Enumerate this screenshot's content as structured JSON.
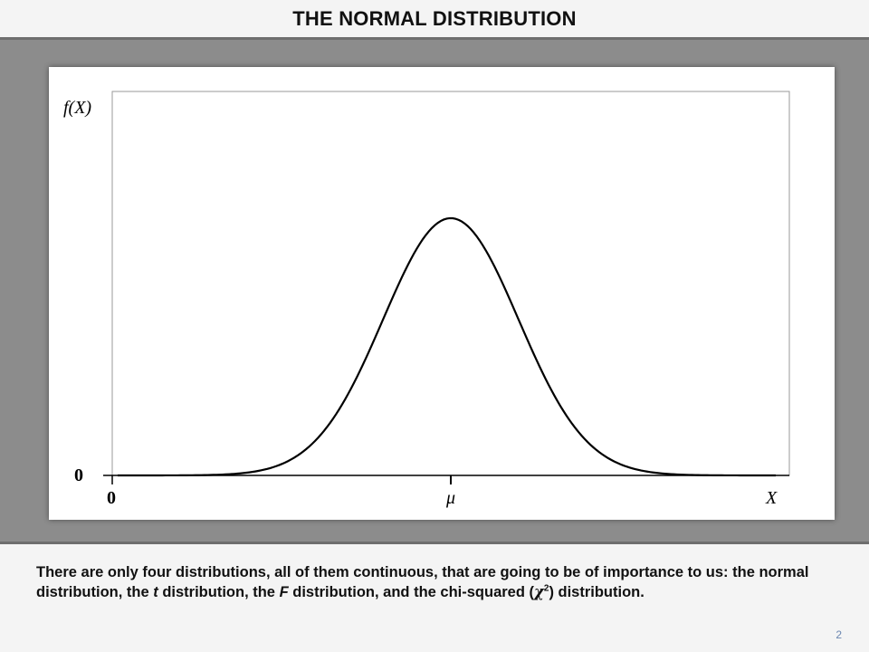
{
  "header": {
    "title": "THE NORMAL DISTRIBUTION"
  },
  "chart_data": {
    "type": "line",
    "curve": "normal-density",
    "mean_label": "μ",
    "xlabel": "X",
    "ylabel": "f(X)",
    "x_origin_label": "0",
    "y_origin_label": "0",
    "xlim": [
      0,
      1
    ],
    "ylim": [
      0,
      1
    ],
    "mean": 0.5,
    "sd": 0.1,
    "peak_fraction_of_ylim": 0.67,
    "grid": false,
    "legend": "none"
  },
  "body": {
    "text_1": "There are only four distributions, all of them continuous, that are going to be of importance to us: the normal distribution, the ",
    "t_label": "t",
    "text_2": " distribution, the ",
    "F_label": "F",
    "text_3": " distribution, and the chi-squared (",
    "chi_symbol": "χ",
    "chi_power": "2",
    "text_4": ") distribution."
  },
  "footer": {
    "page_number": "2"
  }
}
